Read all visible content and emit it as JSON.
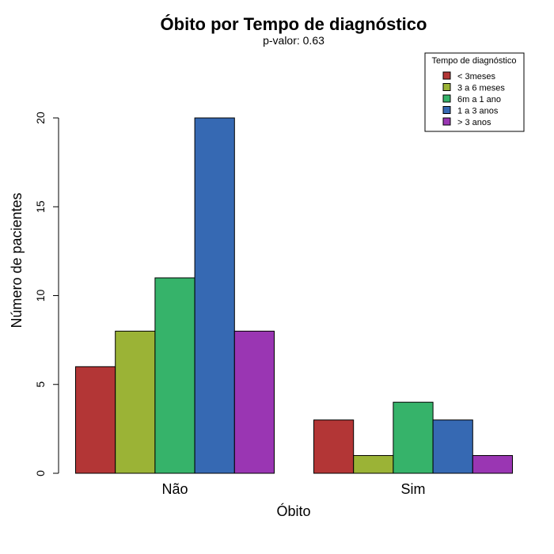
{
  "chart_data": {
    "type": "bar",
    "title": "Óbito por Tempo de diagnóstico",
    "subtitle": "p-valor: 0.63",
    "xlabel": "Óbito",
    "ylabel": "Número de pacientes",
    "categories": [
      "Não",
      "Sim"
    ],
    "series": [
      {
        "name": "< 3meses",
        "color": "#B33636",
        "values": [
          6,
          3
        ]
      },
      {
        "name": "3 a 6 meses",
        "color": "#9BB336",
        "values": [
          8,
          1
        ]
      },
      {
        "name": "6m a 1 ano",
        "color": "#36B36A",
        "values": [
          11,
          4
        ]
      },
      {
        "name": "1 a 3 anos",
        "color": "#3669B3",
        "values": [
          20,
          3
        ]
      },
      {
        "name": "> 3 anos",
        "color": "#9A36B3",
        "values": [
          8,
          1
        ]
      }
    ],
    "ylim": [
      0,
      20
    ],
    "yticks": [
      0,
      5,
      10,
      15,
      20
    ],
    "grid": false,
    "legend": {
      "title": "Tempo de diagnóstico",
      "position": "top-right"
    }
  }
}
